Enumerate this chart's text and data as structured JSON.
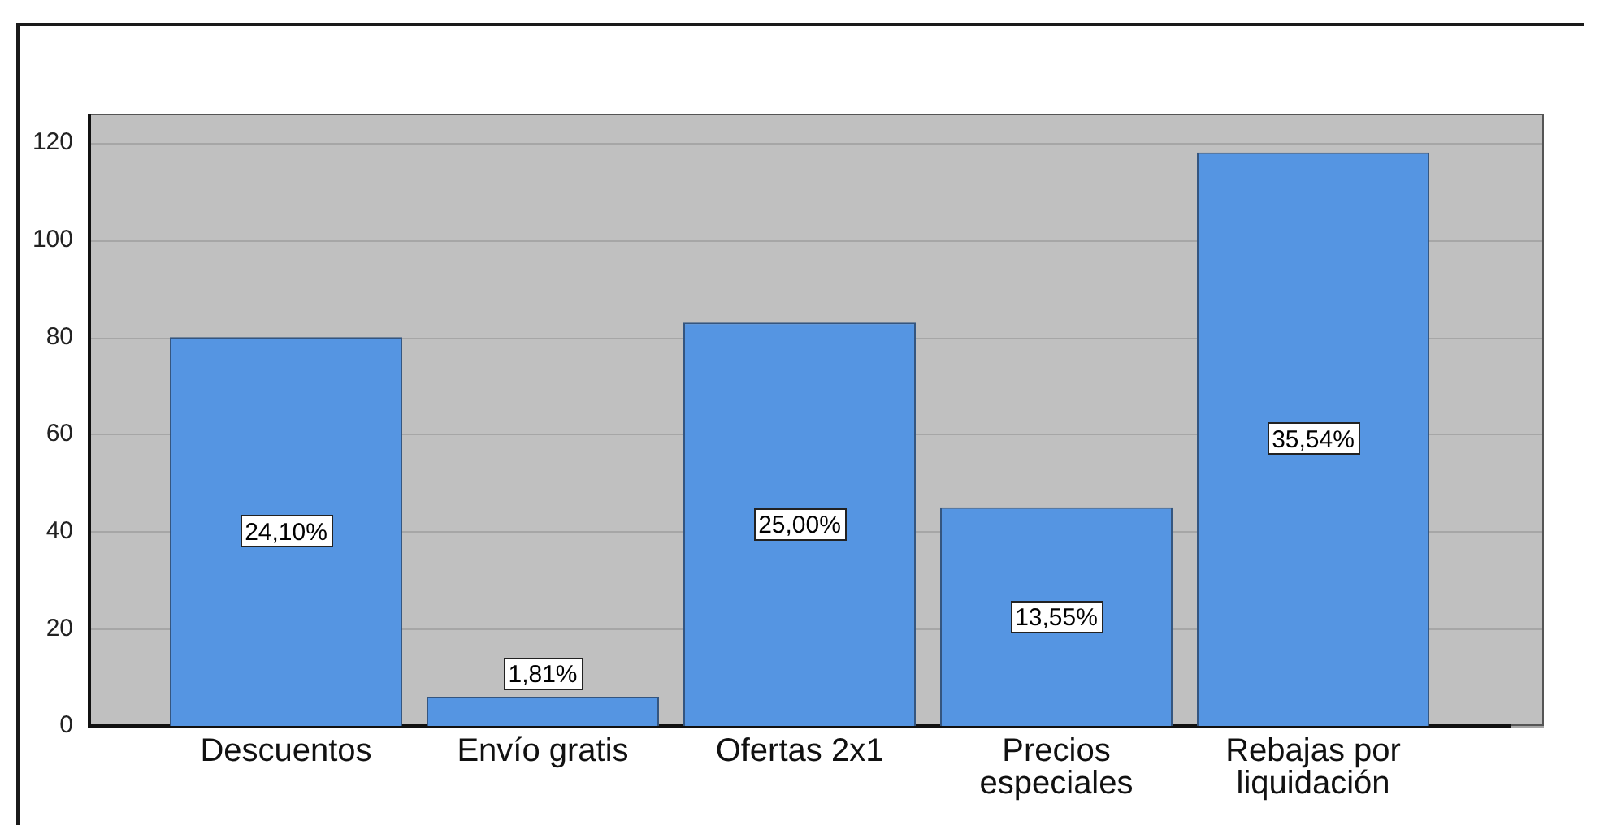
{
  "chart_data": {
    "type": "bar",
    "categories": [
      "Descuentos",
      "Envío gratis",
      "Ofertas 2x1",
      "Precios especiales",
      "Rebajas por liquidación"
    ],
    "values": [
      80,
      6,
      83,
      45,
      118
    ],
    "color": "#5595e2",
    "annotations": [
      "24,10%",
      "1,81%",
      "25,00%",
      "13,55%",
      "35,54%"
    ],
    "ylim": [
      0,
      126
    ],
    "yticks": [
      0,
      20,
      40,
      60,
      80,
      100,
      120
    ],
    "grid": "y"
  }
}
